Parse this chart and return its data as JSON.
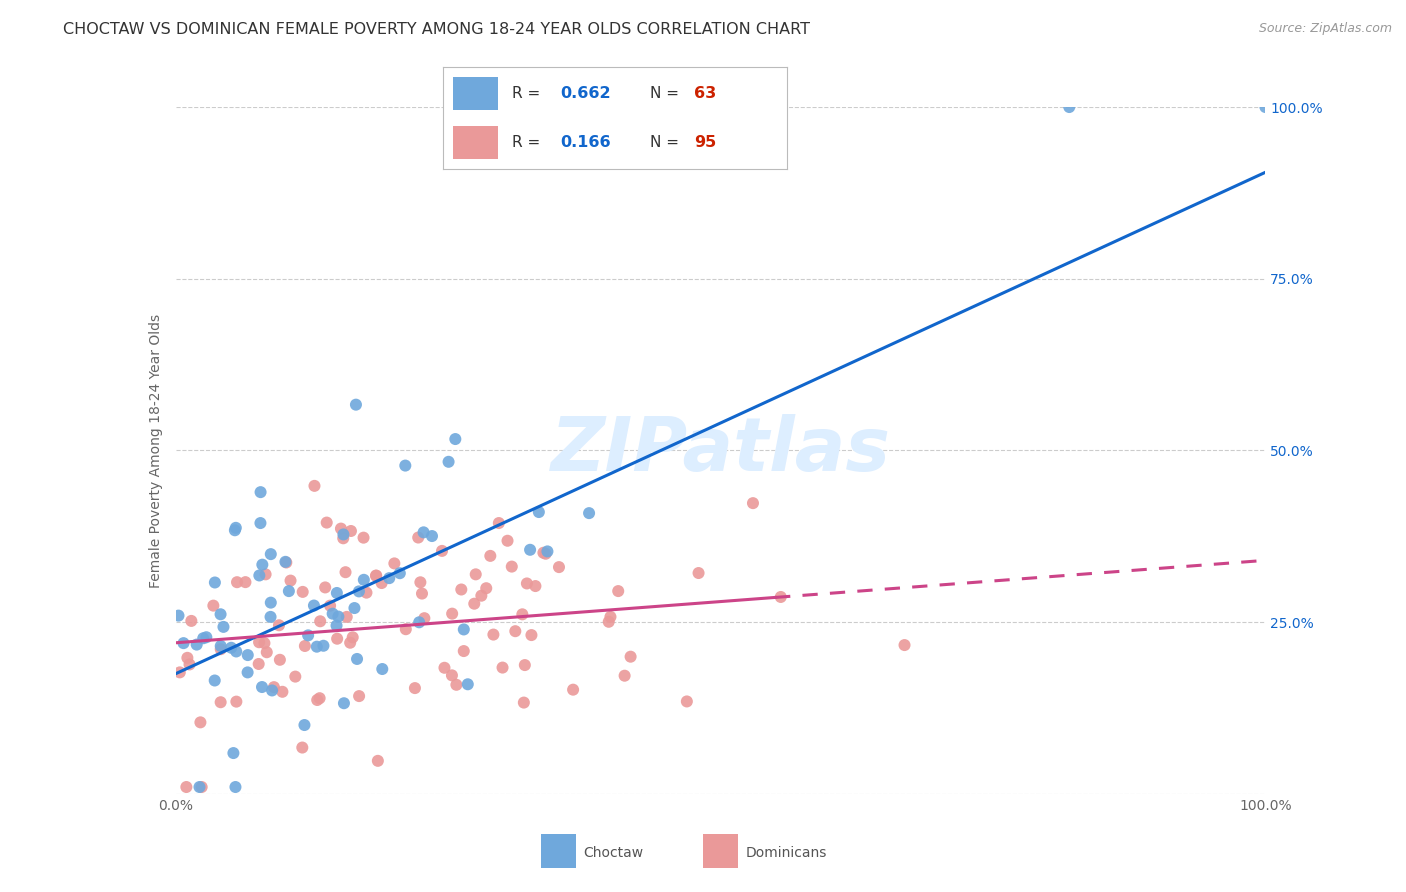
{
  "title": "CHOCTAW VS DOMINICAN FEMALE POVERTY AMONG 18-24 YEAR OLDS CORRELATION CHART",
  "source": "Source: ZipAtlas.com",
  "ylabel": "Female Poverty Among 18-24 Year Olds",
  "xlim": [
    0,
    1
  ],
  "ylim": [
    0,
    1
  ],
  "choctaw_R": 0.662,
  "choctaw_N": 63,
  "dominican_R": 0.166,
  "dominican_N": 95,
  "choctaw_color": "#6fa8dc",
  "dominican_color": "#ea9999",
  "choctaw_line_color": "#1166cc",
  "dominican_line_color": "#cc4488",
  "background_color": "#ffffff",
  "grid_color": "#cccccc",
  "title_color": "#333333",
  "watermark_color": "#ddeeff",
  "legend_R_color": "#1166cc",
  "legend_N_color": "#cc2200",
  "right_tick_color": "#1166cc",
  "choctaw_seed": 42,
  "dominican_seed": 99,
  "choctaw_line_intercept": 0.175,
  "choctaw_line_slope": 0.73,
  "dominican_line_intercept": 0.22,
  "dominican_line_slope": 0.12
}
